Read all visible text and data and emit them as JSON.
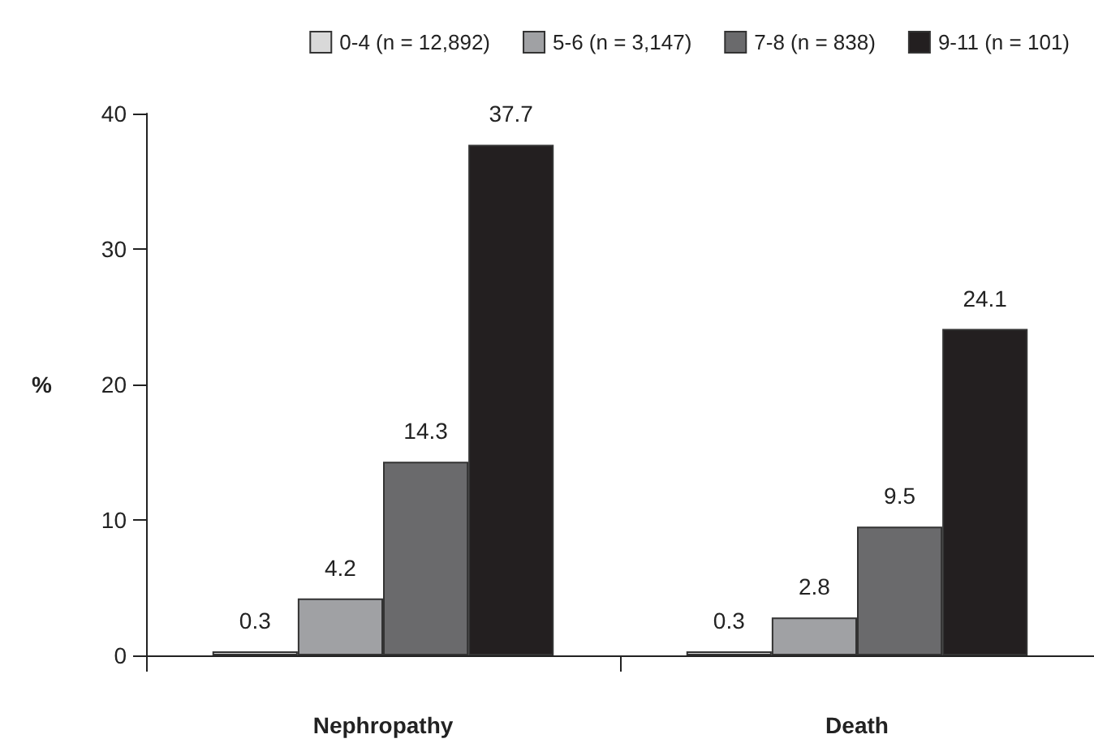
{
  "chart_data": {
    "type": "bar",
    "ylabel": "%",
    "categories": [
      "Nephropathy",
      "Death"
    ],
    "series": [
      {
        "name": "0-4 (n = 12,892)",
        "color": "#d9d9d9",
        "values": [
          0.3,
          0.3
        ]
      },
      {
        "name": "5-6 (n = 3,147)",
        "color": "#a0a1a4",
        "values": [
          4.2,
          2.8
        ]
      },
      {
        "name": "7-8 (n = 838)",
        "color": "#6a6a6c",
        "values": [
          14.3,
          9.5
        ]
      },
      {
        "name": "9-11 (n = 101)",
        "color": "#231f20",
        "values": [
          37.7,
          24.1
        ]
      }
    ],
    "ylim": [
      0,
      40
    ],
    "yticks": [
      0,
      10,
      20,
      30,
      40
    ],
    "grid": false,
    "legend": "top",
    "data_labels": true
  }
}
